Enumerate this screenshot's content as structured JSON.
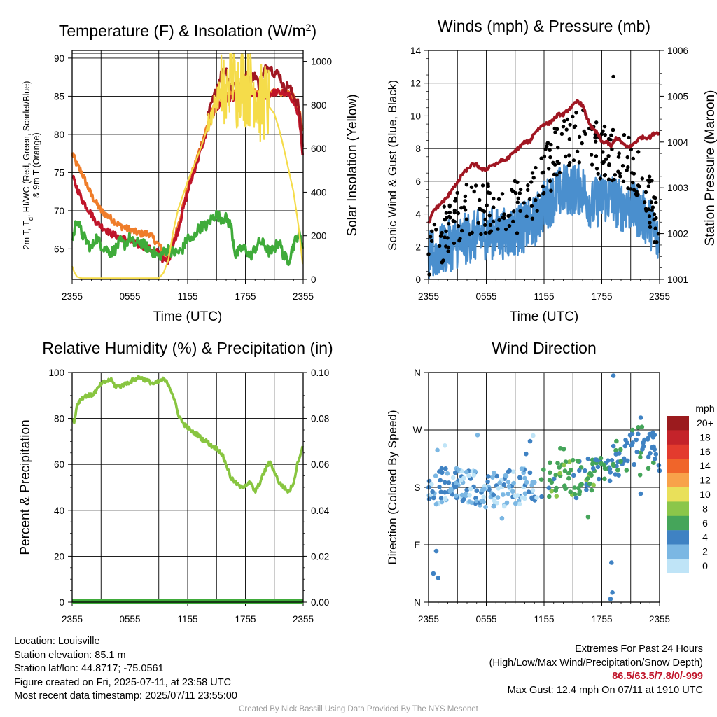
{
  "chart_data": [
    {
      "id": "temp",
      "type": "line",
      "title": "Temperature (F) & Insolation (W/m²)",
      "xlabel": "Time (UTC)",
      "ylabel_left": "2m T, T_d, HI/WC (Red, Green, Scarlet/Blue) & 9m T (Orange)",
      "ylabel_right": "Solar Insolation (Yellow)",
      "x_ticks": [
        "2355",
        "0555",
        "1155",
        "1755",
        "2355"
      ],
      "ylim_left": [
        61,
        91
      ],
      "y_ticks_left": [
        65,
        70,
        75,
        80,
        85,
        90
      ],
      "ylim_right": [
        0,
        1050
      ],
      "y_ticks_right": [
        0,
        200,
        400,
        600,
        800,
        1000
      ],
      "x_range_hours": [
        0,
        24
      ],
      "series": [
        {
          "axis": "left",
          "color": "#ef7d2a",
          "x": [
            0,
            0.5,
            1,
            1.5,
            2,
            2.5,
            3,
            3.5,
            4,
            5,
            6,
            7,
            8,
            9,
            9.5,
            10,
            11,
            12,
            13,
            14,
            14.5,
            15,
            16,
            17,
            18,
            19,
            20,
            21,
            22,
            23,
            23.6,
            24
          ],
          "values": [
            77.5,
            76,
            75,
            73.5,
            72,
            71,
            70,
            69.5,
            69,
            68,
            67.5,
            67,
            67,
            65.5,
            64.5,
            64,
            68,
            73,
            77,
            81,
            83,
            84,
            85,
            85.5,
            86,
            85.5,
            85,
            85.5,
            85.5,
            85,
            83,
            80
          ]
        },
        {
          "axis": "left",
          "color": "#c0152a",
          "x": [
            0,
            0.5,
            1,
            1.5,
            2,
            2.5,
            3,
            3.5,
            4,
            5,
            6,
            7,
            8,
            9,
            9.5,
            10,
            11,
            12,
            13,
            14,
            14.5,
            15,
            16,
            17,
            18,
            19,
            20,
            21,
            22,
            23,
            23.6,
            24
          ],
          "values": [
            74.5,
            73,
            71.5,
            70.5,
            69.5,
            68.5,
            68,
            67.5,
            67,
            66.5,
            66,
            65.5,
            65,
            64.5,
            63.5,
            63.5,
            67.5,
            72.5,
            76.5,
            80.5,
            82.5,
            83.5,
            84.5,
            85,
            85.5,
            85,
            85,
            85.5,
            85.5,
            84.5,
            82,
            77
          ]
        },
        {
          "axis": "left",
          "color": "#a01622",
          "x": [
            14,
            14.5,
            15,
            15.5,
            16,
            16.5,
            17,
            17.5,
            18,
            18.5,
            19,
            19.5,
            20,
            20.5,
            21,
            21.5,
            22,
            22.5,
            23,
            23.5,
            24
          ],
          "values": [
            82,
            84,
            86,
            88,
            88.5,
            86,
            87,
            86,
            88,
            87,
            88,
            86,
            88.5,
            89,
            88,
            88,
            86,
            86.5,
            85,
            84,
            78
          ]
        },
        {
          "axis": "left",
          "color": "#3fab3a",
          "x": [
            0,
            0.5,
            1,
            1.5,
            2,
            2.5,
            3,
            3.5,
            4,
            4.5,
            5,
            5.5,
            6,
            6.5,
            7,
            7.5,
            8,
            8.5,
            9,
            9.5,
            10,
            10.5,
            11,
            11.5,
            12,
            12.5,
            13,
            13.5,
            14,
            14.5,
            15,
            15.5,
            16,
            16.5,
            17,
            17.5,
            18,
            18.5,
            19,
            19.5,
            20,
            20.5,
            21,
            21.5,
            22,
            22.5,
            23,
            23.5,
            24
          ],
          "values": [
            66,
            69,
            67,
            66,
            65,
            66.5,
            65.5,
            65,
            64.5,
            65,
            66,
            65.5,
            66.5,
            65.5,
            66,
            65.5,
            65,
            64.5,
            64,
            64.5,
            65,
            64.5,
            64.5,
            65,
            66.5,
            66,
            67.5,
            68,
            68,
            69,
            69.5,
            69,
            69,
            68,
            64,
            65,
            65,
            64,
            65,
            66,
            65.5,
            64.5,
            65,
            66,
            64,
            63.5,
            65.5,
            67,
            65.5
          ]
        },
        {
          "axis": "right",
          "color": "#f5dc4a",
          "x": [
            0,
            0.2,
            0.5,
            1,
            2,
            4,
            6,
            8,
            9,
            9.5,
            10,
            10.5,
            11,
            12,
            13,
            13.5,
            14,
            14.5,
            15,
            15.5,
            16,
            16.5,
            17,
            17.5,
            18,
            18.5,
            19,
            19.5,
            20,
            20.5,
            21,
            21.5,
            22,
            22.5,
            23,
            23.5,
            24
          ],
          "values": [
            60,
            35,
            12,
            5,
            5,
            5,
            5,
            5,
            5,
            30,
            90,
            220,
            320,
            450,
            560,
            620,
            690,
            760,
            830,
            870,
            810,
            1000,
            850,
            930,
            880,
            880,
            880,
            800,
            820,
            790,
            760,
            690,
            600,
            500,
            400,
            250,
            50
          ]
        }
      ]
    },
    {
      "id": "winds",
      "type": "line",
      "title": "Winds (mph) & Pressure (mb)",
      "xlabel": "Time (UTC)",
      "ylabel_left": "Sonic Wind & Gust (Blue, Black)",
      "ylabel_right": "Station Pressure (Maroon)",
      "x_ticks": [
        "2355",
        "0555",
        "1155",
        "1755",
        "2355"
      ],
      "ylim_left": [
        0,
        14
      ],
      "y_ticks_left": [
        0,
        2,
        4,
        6,
        8,
        10,
        12,
        14
      ],
      "ylim_right": [
        1001,
        1006
      ],
      "y_ticks_right": [
        1001,
        1002,
        1003,
        1004,
        1005,
        1006
      ],
      "x_range_hours": [
        0,
        24
      ],
      "max_gust": 12.4,
      "series": [
        {
          "axis": "right",
          "name_shown": false,
          "color": "#a01622",
          "x": [
            0,
            0.5,
            1,
            1.5,
            2,
            2.5,
            3,
            3.5,
            4,
            4.5,
            5,
            5.5,
            6,
            6.5,
            7,
            7.5,
            8,
            8.5,
            9,
            9.5,
            10,
            10.5,
            11,
            11.5,
            12,
            12.5,
            13,
            13.5,
            14,
            14.5,
            15,
            15.5,
            16,
            16.5,
            17,
            17.5,
            18,
            18.5,
            19,
            19.5,
            20,
            20.5,
            21,
            21.5,
            22,
            22.5,
            23,
            23.5,
            24
          ],
          "values": [
            1002.2,
            1002.5,
            1002.6,
            1002.7,
            1002.8,
            1003.0,
            1003.1,
            1003.3,
            1003.4,
            1003.5,
            1003.5,
            1003.4,
            1003.4,
            1003.5,
            1003.5,
            1003.6,
            1003.6,
            1003.7,
            1003.8,
            1003.9,
            1004.0,
            1004.0,
            1004.2,
            1004.3,
            1004.4,
            1004.4,
            1004.5,
            1004.6,
            1004.6,
            1004.7,
            1004.8,
            1004.9,
            1004.8,
            1004.5,
            1004.3,
            1004.2,
            1004.0,
            1004.0,
            1003.9,
            1004.1,
            1004.0,
            1003.9,
            1003.9,
            1004.0,
            1004.1,
            1004.1,
            1004.1,
            1004.2,
            1004.2
          ]
        }
      ]
    },
    {
      "id": "rh",
      "type": "line",
      "title": "Relative Humidity (%) & Precipitation (in)",
      "ylabel_left": "Percent & Precipitation",
      "x_ticks": [
        "2355",
        "0555",
        "1155",
        "1755",
        "2355"
      ],
      "ylim_left": [
        0,
        100
      ],
      "y_ticks_left": [
        0,
        20,
        40,
        60,
        80,
        100
      ],
      "ylim_right": [
        0,
        0.1
      ],
      "y_ticks_right": [
        "0.00",
        "0.02",
        "0.04",
        "0.06",
        "0.08",
        "0.10"
      ],
      "x_range_hours": [
        0,
        24
      ],
      "series": [
        {
          "axis": "left",
          "color": "#88c540",
          "x": [
            0,
            0.2,
            0.5,
            1,
            1.5,
            2,
            2.5,
            3,
            3.5,
            4,
            4.5,
            5,
            5.5,
            6,
            6.5,
            7,
            7.5,
            8,
            8.5,
            9,
            9.5,
            10,
            10.5,
            11,
            11.5,
            12,
            12.5,
            13,
            13.5,
            14,
            14.5,
            15,
            15.5,
            16,
            16.5,
            17,
            17.5,
            18,
            18.5,
            19,
            19.5,
            20,
            20.5,
            21,
            21.5,
            22,
            22.5,
            23,
            23.5,
            24
          ],
          "values": [
            80,
            78,
            86,
            89,
            90,
            90,
            92,
            95,
            96,
            97,
            94,
            94,
            95,
            96,
            97,
            98,
            97,
            96,
            95,
            96,
            97,
            95,
            90,
            82,
            78,
            76,
            74,
            73,
            71,
            70,
            68,
            67,
            65,
            60,
            54,
            52,
            50,
            51,
            52,
            48,
            52,
            57,
            61,
            57,
            52,
            50,
            48,
            52,
            62,
            68
          ]
        },
        {
          "axis": "right",
          "color": "#3fab3a",
          "x": [
            0,
            24
          ],
          "values": [
            0,
            0
          ]
        }
      ]
    },
    {
      "id": "wdir",
      "type": "scatter",
      "title": "Wind Direction",
      "ylabel_left": "Direction (Colored By Speed)",
      "x_ticks": [
        "2355",
        "0555",
        "1155",
        "1755",
        "2355"
      ],
      "y_ticks": [
        "N",
        "E",
        "S",
        "W",
        "N"
      ],
      "ylim": [
        0,
        360
      ],
      "x_range_hours": [
        0,
        24
      ],
      "legend": {
        "unit": "mph",
        "levels": [
          "20+",
          "18",
          "16",
          "14",
          "12",
          "10",
          "8",
          "6",
          "4",
          "2",
          "0"
        ],
        "colors": [
          "#9b1b1e",
          "#c4232a",
          "#e33b2e",
          "#f0652a",
          "#f8a24a",
          "#e9e05a",
          "#8bc64a",
          "#45a55a",
          "#3f82c3",
          "#7bb7e3",
          "#bfe4f7"
        ]
      }
    }
  ],
  "info": {
    "location": "Location: Louisville",
    "elevation": "Station elevation: 85.1 m",
    "latlon": "Station lat/lon: 44.8717; -75.0561",
    "created": "Figure created on Fri, 2025-07-11, at 23:58 UTC",
    "timestamp": "Most recent data timestamp: 2025/07/11 23:55:00"
  },
  "extremes": {
    "title": "Extremes For Past 24 Hours",
    "legend": "(High/Low/Max Wind/Precipitation/Snow Depth)",
    "values": "86.5/63.5/7.8/0/-999",
    "max_gust": "Max Gust: 12.4 mph On 07/11 at 1910 UTC"
  },
  "credit": "Created By Nick Bassill Using Data Provided By The NYS Mesonet"
}
